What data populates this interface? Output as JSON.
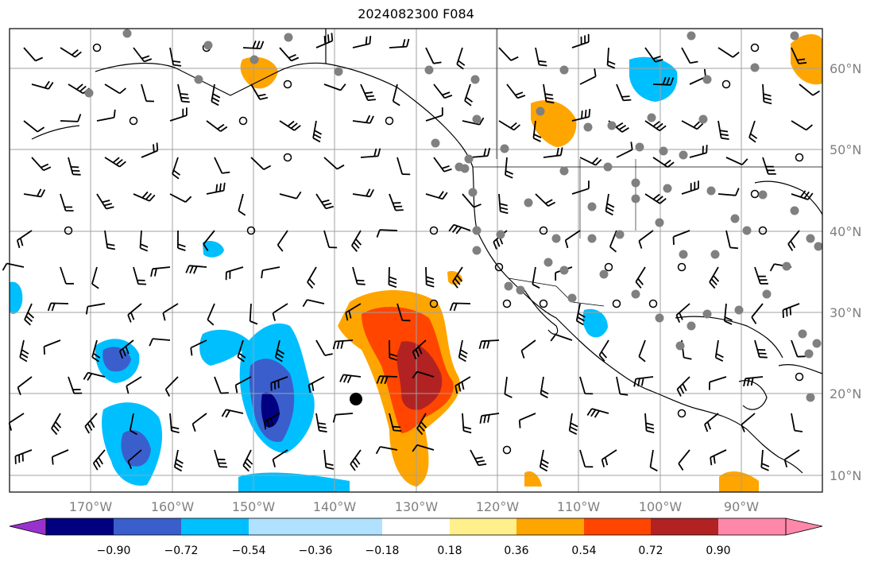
{
  "title": "2024082300 F084",
  "lon_ticks": [
    "170°W",
    "160°W",
    "150°W",
    "140°W",
    "130°W",
    "120°W",
    "110°W",
    "100°W",
    "90°W"
  ],
  "lat_ticks": [
    "60°N",
    "50°N",
    "40°N",
    "30°N",
    "20°N",
    "10°N"
  ],
  "colorbar": {
    "colors": [
      "#9932cc",
      "#000080",
      "#3a5fcd",
      "#00bfff",
      "#b0e2ff",
      "#ffffff",
      "#fff08c",
      "#ffa500",
      "#ff4500",
      "#b22222",
      "#ff88aa"
    ],
    "tick_labels": [
      "−0.90",
      "−0.72",
      "−0.54",
      "−0.36",
      "−0.18",
      "0.18",
      "0.36",
      "0.54",
      "0.72",
      "0.90"
    ]
  },
  "colors": {
    "ocean": "#ffffff",
    "coast": "#000000",
    "grid": "#a0a0a0",
    "station_dot": "#808080",
    "tick_text": "#808080"
  },
  "legend_items": []
}
